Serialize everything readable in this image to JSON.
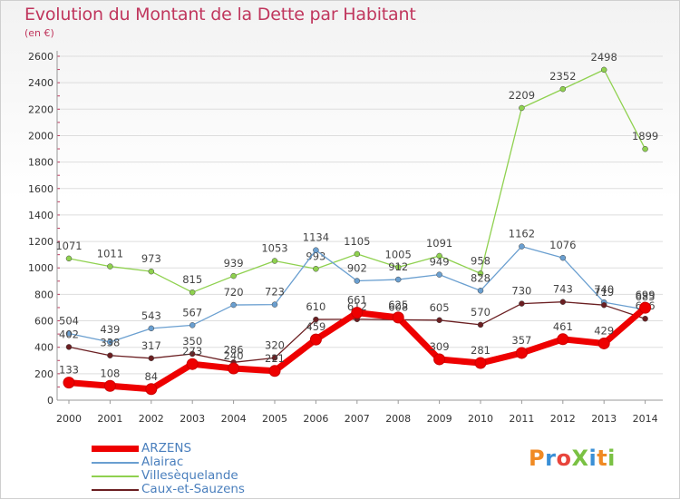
{
  "header": {
    "title": "Evolution du Montant de la Dette par Habitant",
    "subtitle": "(en €)"
  },
  "logo": {
    "text": "ProXiti",
    "colors": [
      "#f08a24",
      "#3a8fd6",
      "#e8453c",
      "#7ac143",
      "#3a8fd6",
      "#f08a24",
      "#7ac143"
    ]
  },
  "chart_data": {
    "type": "line",
    "title": "Evolution du Montant de la Dette par Habitant",
    "subtitle": "(en €)",
    "xlabel": "",
    "ylabel": "",
    "x": [
      2000,
      2001,
      2002,
      2003,
      2004,
      2005,
      2006,
      2007,
      2008,
      2009,
      2010,
      2011,
      2012,
      2013,
      2014
    ],
    "ylim": [
      0,
      2600
    ],
    "yticks": [
      0,
      200,
      400,
      600,
      800,
      1000,
      1200,
      1400,
      1600,
      1800,
      2000,
      2200,
      2400,
      2600
    ],
    "grid": true,
    "legend_position": "bottom-left",
    "series": [
      {
        "name": "Villesèquelande",
        "color": "#8fd14f",
        "values": [
          1071,
          1011,
          973,
          815,
          939,
          1053,
          993,
          1105,
          1005,
          1091,
          958,
          2209,
          2352,
          2498,
          1899
        ]
      },
      {
        "name": "Alairac",
        "color": "#6a9fd0",
        "values": [
          504,
          439,
          543,
          567,
          720,
          723,
          1134,
          902,
          912,
          949,
          828,
          1162,
          1076,
          740,
          685
        ]
      },
      {
        "name": "Caux-et-Sauzens",
        "color": "#6b1f22",
        "values": [
          402,
          338,
          317,
          350,
          286,
          320,
          610,
          612,
          608,
          605,
          570,
          730,
          743,
          719,
          616
        ]
      },
      {
        "name": "ARZENS",
        "color": "#ee0000",
        "values": [
          133,
          108,
          84,
          273,
          240,
          221,
          459,
          661,
          625,
          309,
          281,
          357,
          461,
          429,
          699
        ]
      }
    ]
  }
}
